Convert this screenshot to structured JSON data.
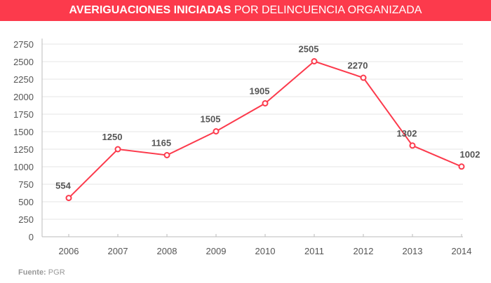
{
  "header": {
    "title_bold": "AVERIGUACIONES INICIADAS",
    "title_rest": "POR DELINCUENCIA ORGANIZADA"
  },
  "footer": {
    "label": "Fuente:",
    "value": "PGR"
  },
  "colors": {
    "accent": "#fc3a4c",
    "label": "#555555",
    "grid": "#e6e6e6"
  },
  "chart_data": {
    "type": "line",
    "categories": [
      "2006",
      "2007",
      "2008",
      "2009",
      "2010",
      "2011",
      "2012",
      "2013",
      "2014"
    ],
    "values": [
      554,
      1250,
      1165,
      1505,
      1905,
      2505,
      2270,
      1302,
      1002
    ],
    "ylim": [
      0,
      2750
    ],
    "yticks": [
      0,
      250,
      500,
      750,
      1000,
      1250,
      1500,
      1750,
      2000,
      2250,
      2500,
      2750
    ],
    "grid": true,
    "title": "AVERIGUACIONES INICIADAS POR DELINCUENCIA ORGANIZADA"
  }
}
